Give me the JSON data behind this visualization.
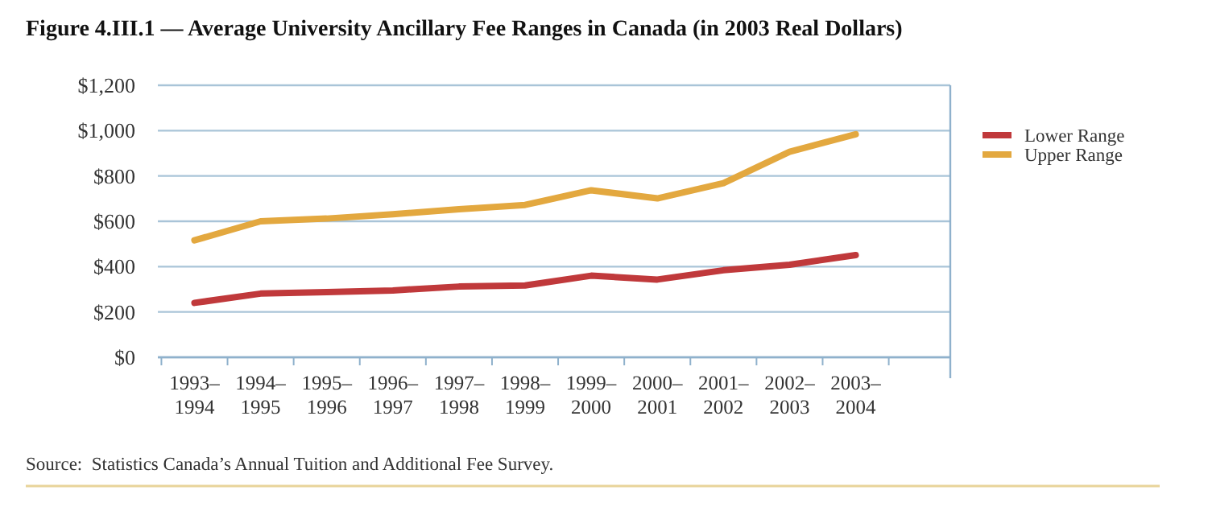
{
  "chart_data": {
    "type": "line",
    "title": "Figure 4.III.1 — Average University Ancillary Fee Ranges in Canada (in 2003 Real Dollars)",
    "categories": [
      "1993–\n1994",
      "1994–\n1995",
      "1995–\n1996",
      "1996–\n1997",
      "1997–\n1998",
      "1998–\n1999",
      "1999–\n2000",
      "2000–\n2001",
      "2001–\n2002",
      "2002–\n2003",
      "2003–\n2004"
    ],
    "series": [
      {
        "name": "Lower Range",
        "color": "#c0393b",
        "values": [
          240,
          281,
          288,
          295,
          312,
          317,
          360,
          343,
          384,
          408,
          451
        ]
      },
      {
        "name": "Upper Range",
        "color": "#e3a83f",
        "values": [
          516,
          600,
          612,
          631,
          653,
          672,
          737,
          701,
          768,
          907,
          984
        ]
      }
    ],
    "ylim": [
      0,
      1200
    ],
    "yticks": [
      {
        "value": 0,
        "label": "$0"
      },
      {
        "value": 200,
        "label": "$200"
      },
      {
        "value": 400,
        "label": "$400"
      },
      {
        "value": 600,
        "label": "$600"
      },
      {
        "value": 800,
        "label": "$800"
      },
      {
        "value": 1000,
        "label": "$1,000"
      },
      {
        "value": 1200,
        "label": "$1,200"
      }
    ],
    "grid": "y",
    "legend": "right",
    "marker": "none",
    "line_style": "solid",
    "annotations": [
      "Source:  Statistics Canada’s Annual Tuition and Additional Fee Survey."
    ]
  }
}
